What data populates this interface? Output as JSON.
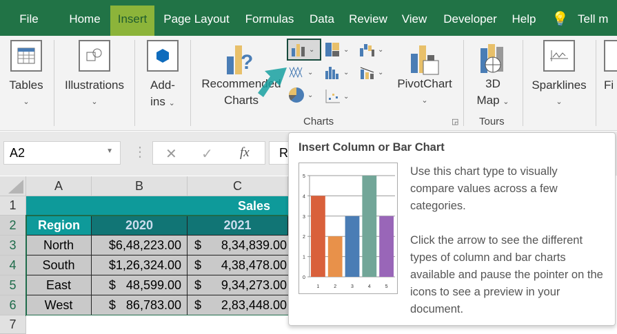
{
  "tabs": [
    {
      "label": "File"
    },
    {
      "label": "Home"
    },
    {
      "label": "Insert",
      "active": true
    },
    {
      "label": "Page Layout"
    },
    {
      "label": "Formulas"
    },
    {
      "label": "Data"
    },
    {
      "label": "Review"
    },
    {
      "label": "View"
    },
    {
      "label": "Developer"
    },
    {
      "label": "Help"
    },
    {
      "label": "Tell m"
    }
  ],
  "ribbon": {
    "tables": "Tables",
    "illustrations": "Illustrations",
    "addins_1": "Add-",
    "addins_2": "ins",
    "recommended_1": "Recommended",
    "recommended_2": "Charts",
    "pivotchart": "PivotChart",
    "map_1": "3D",
    "map_2": "Map",
    "sparklines": "Sparklines",
    "filters_partial": "Fi",
    "charts_group": "Charts",
    "tours_group": "Tours"
  },
  "formula_bar": {
    "name_box": "A2",
    "cancel": "✕",
    "enter": "✓",
    "fx": "fx",
    "content_partial": "R"
  },
  "sheet": {
    "columns": [
      "A",
      "B",
      "C"
    ],
    "rows": [
      "1",
      "2",
      "3",
      "4",
      "5",
      "6",
      "7"
    ],
    "title": "Sales",
    "headers": [
      "Region",
      "2020",
      "2021"
    ],
    "data": [
      [
        "North",
        "$6,48,223.00",
        "$",
        "8,34,839.00"
      ],
      [
        "South",
        "$1,26,324.00",
        "$",
        "4,38,478.00"
      ],
      [
        "East",
        "$   48,599.00",
        "$",
        "9,34,273.00"
      ],
      [
        "West",
        "$   86,783.00",
        "$",
        "2,83,448.00"
      ]
    ]
  },
  "tooltip": {
    "title": "Insert Column or Bar Chart",
    "para1": "Use this chart type to visually compare values across a few categories.",
    "para2": "Click the arrow to see the different types of column and bar charts available and pause the pointer on the icons to see a preview in your document."
  },
  "chart_data": {
    "type": "bar",
    "categories": [
      "1",
      "2",
      "3",
      "4",
      "5"
    ],
    "values": [
      4,
      2,
      3,
      5,
      3
    ],
    "colors": [
      "#d9603b",
      "#e8914a",
      "#4a7db5",
      "#72a698",
      "#9966b8"
    ],
    "ylim": [
      0,
      5
    ],
    "yticks": [
      "0",
      "1",
      "2",
      "3",
      "4",
      "5"
    ],
    "grid": true
  },
  "colors": {
    "ribbon_tab": "#217346",
    "active_tab": "#8cb43a",
    "table_header": "#0e9a9a",
    "table_header_dark": "#117575",
    "cell_fill": "#c9c9c9"
  }
}
